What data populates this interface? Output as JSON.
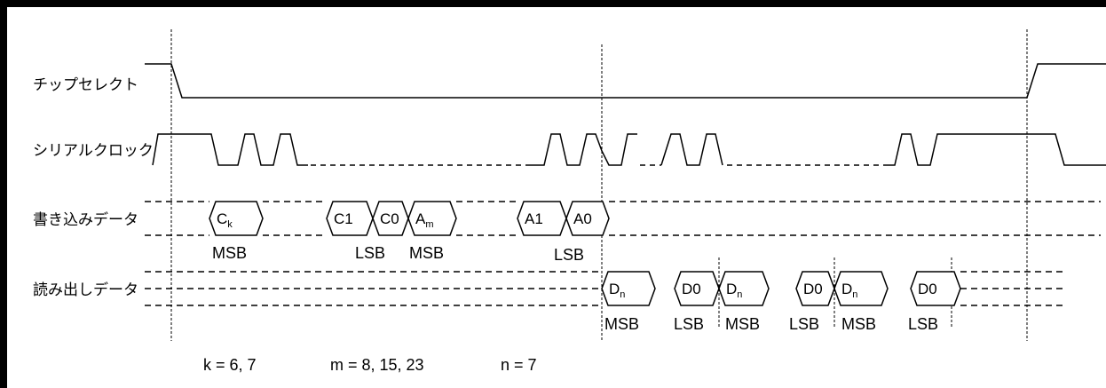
{
  "signals": [
    {
      "id": "cs",
      "label": "チップセレクト"
    },
    {
      "id": "sclk",
      "label": "シリアルクロック"
    },
    {
      "id": "wdat",
      "label": "書き込みデータ"
    },
    {
      "id": "rdat",
      "label": "読み出しデータ"
    }
  ],
  "write_cells": [
    {
      "main": "C",
      "sub": "k"
    },
    {
      "main": "C1",
      "sub": ""
    },
    {
      "main": "C0",
      "sub": ""
    },
    {
      "main": "A",
      "sub": "m"
    },
    {
      "main": "A1",
      "sub": ""
    },
    {
      "main": "A0",
      "sub": ""
    }
  ],
  "read_cells": [
    {
      "main": "D",
      "sub": "n"
    },
    {
      "main": "D0",
      "sub": ""
    },
    {
      "main": "D",
      "sub": "n"
    },
    {
      "main": "D0",
      "sub": ""
    },
    {
      "main": "D",
      "sub": "n"
    },
    {
      "main": "D0",
      "sub": ""
    }
  ],
  "write_annotations": [
    "MSB",
    "LSB",
    "MSB",
    "LSB"
  ],
  "read_annotations": [
    "MSB",
    "LSB",
    "MSB",
    "LSB",
    "MSB",
    "LSB"
  ],
  "notes": [
    "k = 6, 7",
    "m = 8, 15, 23",
    "n = 7"
  ]
}
